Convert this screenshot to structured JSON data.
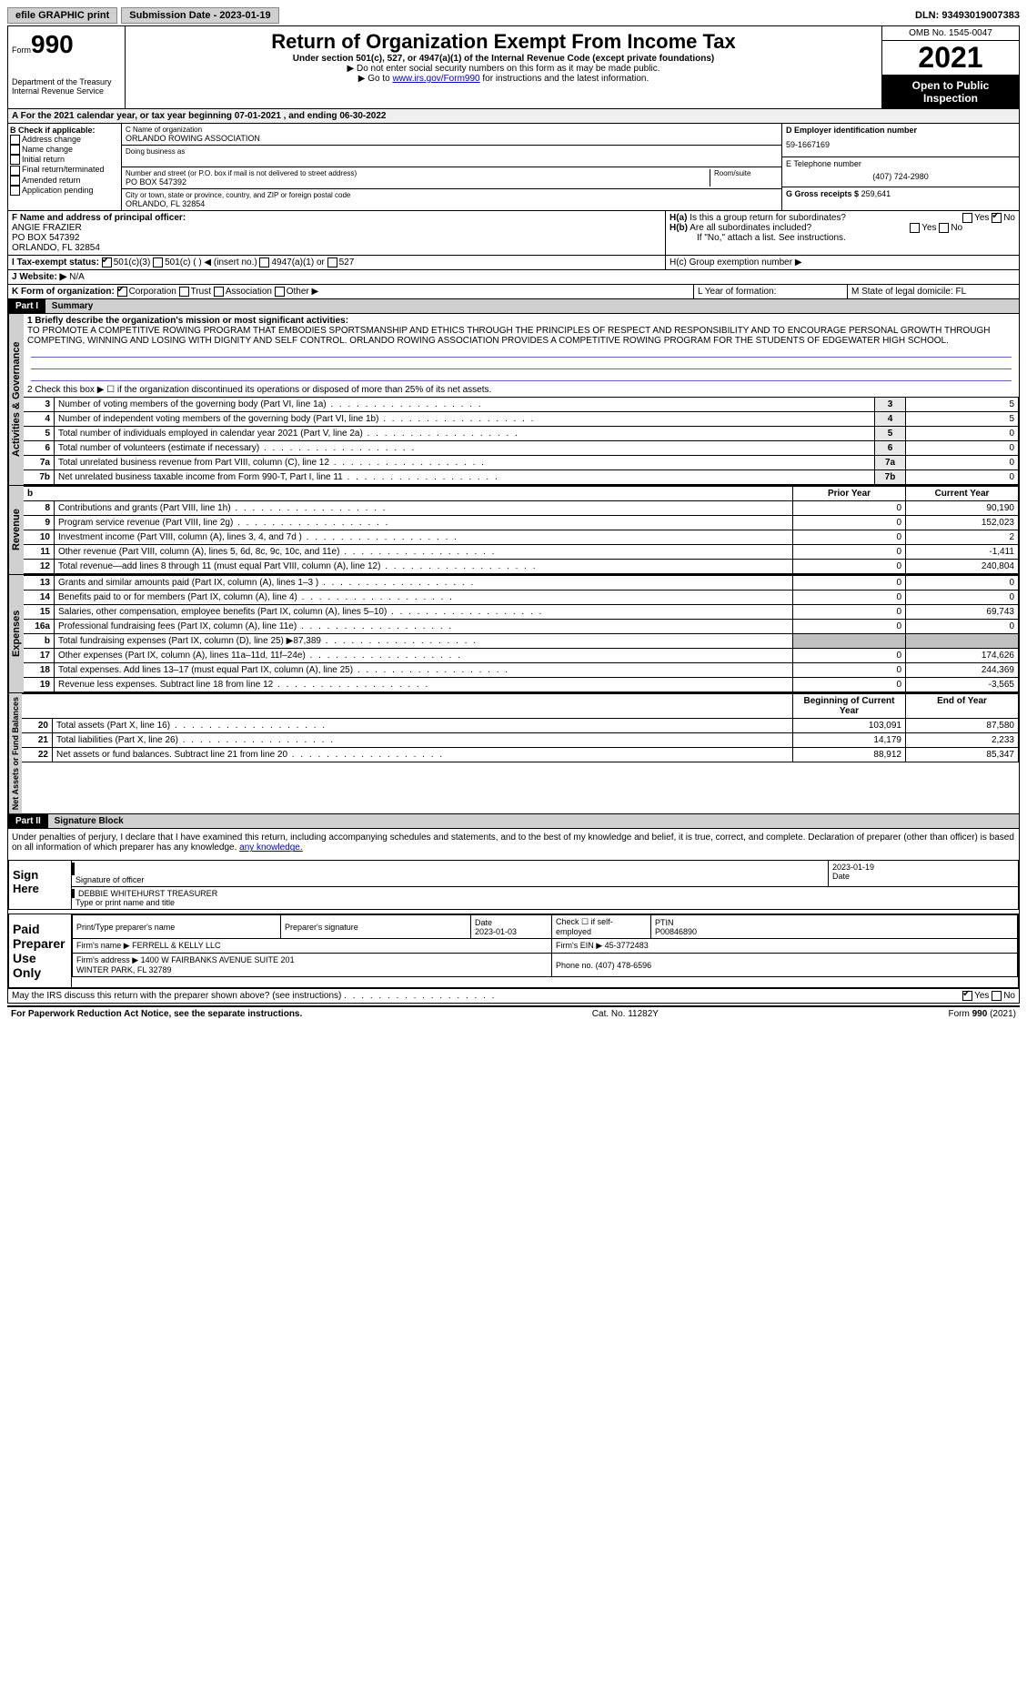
{
  "topbar": {
    "efile": "efile GRAPHIC print",
    "submission": "Submission Date - 2023-01-19",
    "dln": "DLN: 93493019007383"
  },
  "header": {
    "form_label": "Form",
    "form_num": "990",
    "title": "Return of Organization Exempt From Income Tax",
    "subtitle": "Under section 501(c), 527, or 4947(a)(1) of the Internal Revenue Code (except private foundations)",
    "instr1": "Do not enter social security numbers on this form as it may be made public.",
    "instr2_pre": "Go to ",
    "instr2_link": "www.irs.gov/Form990",
    "instr2_post": " for instructions and the latest information.",
    "dept": "Department of the Treasury\nInternal Revenue Service",
    "omb": "OMB No. 1545-0047",
    "year": "2021",
    "open": "Open to Public Inspection"
  },
  "rowA": "A For the 2021 calendar year, or tax year beginning 07-01-2021    , and ending 06-30-2022",
  "colB": {
    "title": "B Check if applicable:",
    "items": [
      "Address change",
      "Name change",
      "Initial return",
      "Final return/terminated",
      "Amended return",
      "Application pending"
    ]
  },
  "colC": {
    "name_label": "C Name of organization",
    "name": "ORLANDO ROWING ASSOCIATION",
    "dba_label": "Doing business as",
    "addr_label": "Number and street (or P.O. box if mail is not delivered to street address)",
    "room_label": "Room/suite",
    "addr": "PO BOX 547392",
    "city_label": "City or town, state or province, country, and ZIP or foreign postal code",
    "city": "ORLANDO, FL  32854"
  },
  "colD": {
    "ein_label": "D Employer identification number",
    "ein": "59-1667169",
    "phone_label": "E Telephone number",
    "phone": "(407) 724-2980",
    "gross_label": "G Gross receipts $",
    "gross": "259,641"
  },
  "rowF": {
    "label": "F  Name and address of principal officer:",
    "name": "ANGIE FRAZIER",
    "addr1": "PO BOX 547392",
    "addr2": "ORLANDO, FL  32854"
  },
  "rowH": {
    "ha": "H(a)  Is this a group return for subordinates?",
    "hb": "H(b)  Are all subordinates included?",
    "hb_note": "If \"No,\" attach a list. See instructions.",
    "hc": "H(c)  Group exemption number ▶",
    "yes": "Yes",
    "no": "No"
  },
  "rowI": {
    "label": "I   Tax-exempt status:",
    "opts": [
      "501(c)(3)",
      "501(c) (  ) ◀ (insert no.)",
      "4947(a)(1) or",
      "527"
    ]
  },
  "rowJ": {
    "label": "J   Website: ▶",
    "val": "N/A"
  },
  "rowK": {
    "label": "K Form of organization:",
    "opts": [
      "Corporation",
      "Trust",
      "Association",
      "Other ▶"
    ]
  },
  "rowL": {
    "label": "L Year of formation:"
  },
  "rowM": {
    "label": "M State of legal domicile: FL"
  },
  "part1": {
    "header": "Part I",
    "title": "Summary",
    "line1_label": "1   Briefly describe the organization's mission or most significant activities:",
    "mission": "TO PROMOTE A COMPETITIVE ROWING PROGRAM THAT EMBODIES SPORTSMANSHIP AND ETHICS THROUGH THE PRINCIPLES OF RESPECT AND RESPONSIBILITY AND TO ENCOURAGE PERSONAL GROWTH THROUGH COMPETING, WINNING AND LOSING WITH DIGNITY AND SELF CONTROL. ORLANDO ROWING ASSOCIATION PROVIDES A COMPETITIVE ROWING PROGRAM FOR THE STUDENTS OF EDGEWATER HIGH SCHOOL.",
    "line2": "2    Check this box ▶ ☐  if the organization discontinued its operations or disposed of more than 25% of its net assets.",
    "governance_rows": [
      {
        "n": "3",
        "desc": "Number of voting members of the governing body (Part VI, line 1a)",
        "box": "3",
        "val": "5"
      },
      {
        "n": "4",
        "desc": "Number of independent voting members of the governing body (Part VI, line 1b)",
        "box": "4",
        "val": "5"
      },
      {
        "n": "5",
        "desc": "Total number of individuals employed in calendar year 2021 (Part V, line 2a)",
        "box": "5",
        "val": "0"
      },
      {
        "n": "6",
        "desc": "Total number of volunteers (estimate if necessary)",
        "box": "6",
        "val": "0"
      },
      {
        "n": "7a",
        "desc": "Total unrelated business revenue from Part VIII, column (C), line 12",
        "box": "7a",
        "val": "0"
      },
      {
        "n": "7b",
        "desc": "Net unrelated business taxable income from Form 990-T, Part I, line 11",
        "box": "7b",
        "val": "0"
      }
    ],
    "col_headers": {
      "prior": "Prior Year",
      "current": "Current Year",
      "begin": "Beginning of Current Year",
      "end": "End of Year"
    },
    "revenue_rows": [
      {
        "n": "8",
        "desc": "Contributions and grants (Part VIII, line 1h)",
        "prior": "0",
        "cur": "90,190"
      },
      {
        "n": "9",
        "desc": "Program service revenue (Part VIII, line 2g)",
        "prior": "0",
        "cur": "152,023"
      },
      {
        "n": "10",
        "desc": "Investment income (Part VIII, column (A), lines 3, 4, and 7d )",
        "prior": "0",
        "cur": "2"
      },
      {
        "n": "11",
        "desc": "Other revenue (Part VIII, column (A), lines 5, 6d, 8c, 9c, 10c, and 11e)",
        "prior": "0",
        "cur": "-1,411"
      },
      {
        "n": "12",
        "desc": "Total revenue—add lines 8 through 11 (must equal Part VIII, column (A), line 12)",
        "prior": "0",
        "cur": "240,804"
      }
    ],
    "expense_rows": [
      {
        "n": "13",
        "desc": "Grants and similar amounts paid (Part IX, column (A), lines 1–3 )",
        "prior": "0",
        "cur": "0"
      },
      {
        "n": "14",
        "desc": "Benefits paid to or for members (Part IX, column (A), line 4)",
        "prior": "0",
        "cur": "0"
      },
      {
        "n": "15",
        "desc": "Salaries, other compensation, employee benefits (Part IX, column (A), lines 5–10)",
        "prior": "0",
        "cur": "69,743"
      },
      {
        "n": "16a",
        "desc": "Professional fundraising fees (Part IX, column (A), line 11e)",
        "prior": "0",
        "cur": "0"
      },
      {
        "n": "b",
        "desc": "Total fundraising expenses (Part IX, column (D), line 25) ▶87,389",
        "prior": "GRAY",
        "cur": "GRAY"
      },
      {
        "n": "17",
        "desc": "Other expenses (Part IX, column (A), lines 11a–11d, 11f–24e)",
        "prior": "0",
        "cur": "174,626"
      },
      {
        "n": "18",
        "desc": "Total expenses. Add lines 13–17 (must equal Part IX, column (A), line 25)",
        "prior": "0",
        "cur": "244,369"
      },
      {
        "n": "19",
        "desc": "Revenue less expenses. Subtract line 18 from line 12",
        "prior": "0",
        "cur": "-3,565"
      }
    ],
    "net_rows": [
      {
        "n": "20",
        "desc": "Total assets (Part X, line 16)",
        "prior": "103,091",
        "cur": "87,580"
      },
      {
        "n": "21",
        "desc": "Total liabilities (Part X, line 26)",
        "prior": "14,179",
        "cur": "2,233"
      },
      {
        "n": "22",
        "desc": "Net assets or fund balances. Subtract line 21 from line 20",
        "prior": "88,912",
        "cur": "85,347"
      }
    ],
    "vert_labels": {
      "gov": "Activities & Governance",
      "rev": "Revenue",
      "exp": "Expenses",
      "net": "Net Assets or Fund Balances"
    }
  },
  "part2": {
    "header": "Part II",
    "title": "Signature Block",
    "penalty": "Under penalties of perjury, I declare that I have examined this return, including accompanying schedules and statements, and to the best of my knowledge and belief, it is true, correct, and complete. Declaration of preparer (other than officer) is based on all information of which preparer has any knowledge.",
    "sign_here": "Sign Here",
    "sig_officer": "Signature of officer",
    "sig_date": "2023-01-19",
    "date_label": "Date",
    "officer_name": "DEBBIE WHITEHURST TREASURER",
    "officer_name_label": "Type or print name and title",
    "paid": "Paid Preparer Use Only",
    "prep_name_label": "Print/Type preparer's name",
    "prep_sig_label": "Preparer's signature",
    "prep_date": "2023-01-03",
    "check_self": "Check ☐ if self-employed",
    "ptin_label": "PTIN",
    "ptin": "P00846890",
    "firm_name_label": "Firm's name    ▶",
    "firm_name": "FERRELL & KELLY LLC",
    "firm_ein_label": "Firm's EIN ▶",
    "firm_ein": "45-3772483",
    "firm_addr_label": "Firm's address ▶",
    "firm_addr": "1400 W FAIRBANKS AVENUE SUITE 201\nWINTER PARK, FL  32789",
    "firm_phone_label": "Phone no.",
    "firm_phone": "(407) 478-6596",
    "may_irs": "May the IRS discuss this return with the preparer shown above? (see instructions)"
  },
  "footer": {
    "left": "For Paperwork Reduction Act Notice, see the separate instructions.",
    "mid": "Cat. No. 11282Y",
    "right": "Form 990 (2021)"
  }
}
